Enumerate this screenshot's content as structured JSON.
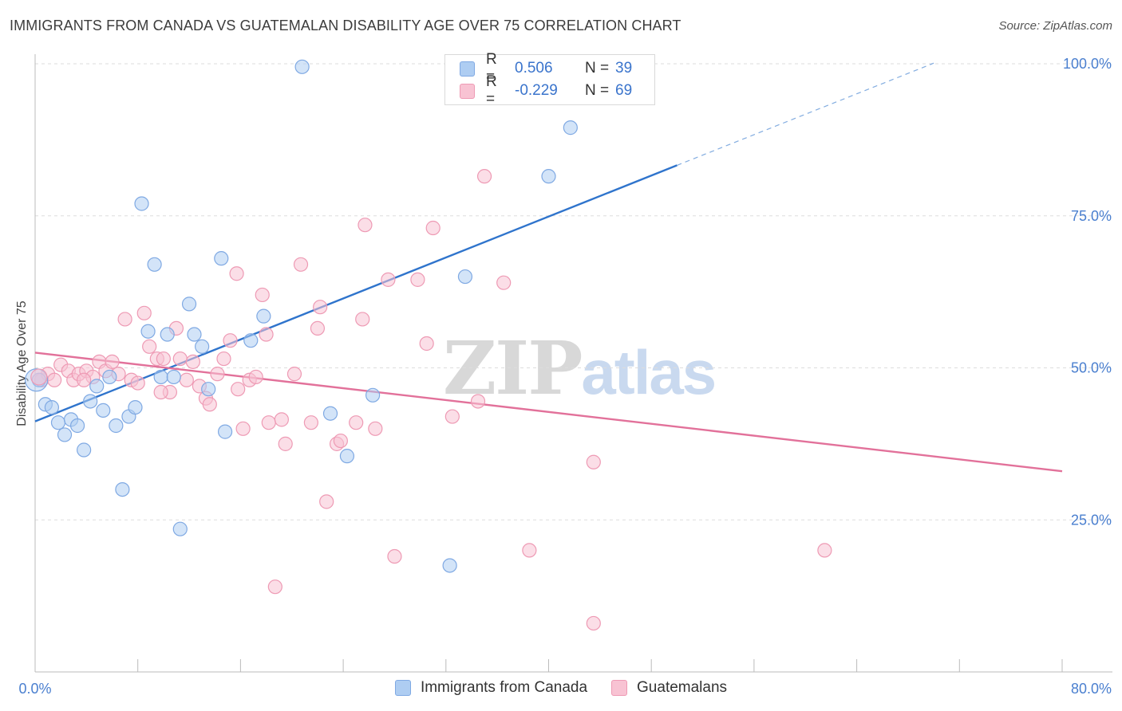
{
  "header": {
    "title": "IMMIGRANTS FROM CANADA VS GUATEMALAN DISABILITY AGE OVER 75 CORRELATION CHART",
    "source": "Source: ZipAtlas.com"
  },
  "watermark": {
    "zip": "ZIP",
    "atlas": "atlas"
  },
  "legend": {
    "rows": [
      {
        "r_label": "R =",
        "r_value": "0.506",
        "n_label": "N =",
        "n_value": "39"
      },
      {
        "r_label": "R =",
        "r_value": "-0.229",
        "n_label": "N =",
        "n_value": "69"
      }
    ]
  },
  "bottom_legend": {
    "series_a": "Immigrants from Canada",
    "series_b": "Guatemalans"
  },
  "colors": {
    "blue_fill": "#aecdf2",
    "blue_stroke": "#7fa9e3",
    "blue_line": "#2f74cc",
    "pink_fill": "#f8c3d3",
    "pink_stroke": "#ee9ab4",
    "pink_line": "#e2719a",
    "grid": "#dddddd",
    "axis_text": "#4a7fcf"
  },
  "chart_data": {
    "type": "scatter",
    "title": "IMMIGRANTS FROM CANADA VS GUATEMALAN DISABILITY AGE OVER 75 CORRELATION CHART",
    "xlabel": "",
    "ylabel": "Disability Age Over 75",
    "xlim": [
      0,
      80
    ],
    "ylim": [
      0,
      105
    ],
    "x_tick_labels": [
      "0.0%",
      "80.0%"
    ],
    "y_ticks": [
      25,
      50,
      75,
      100
    ],
    "y_tick_labels": [
      "25.0%",
      "50.0%",
      "75.0%",
      "100.0%"
    ],
    "grid": true,
    "legend_position": "top-center",
    "series": [
      {
        "name": "Immigrants from Canada",
        "color": "blue",
        "r": 0.506,
        "n": 39,
        "trend": {
          "x0": 0,
          "y0": 41.2,
          "x1": 50,
          "y1": 83.3,
          "dash_to_x": 70,
          "dash_to_y": 100.1
        },
        "points": [
          [
            0.3,
            48.0
          ],
          [
            0.8,
            44.0
          ],
          [
            1.3,
            43.5
          ],
          [
            1.8,
            41.0
          ],
          [
            2.3,
            39.0
          ],
          [
            2.8,
            41.5
          ],
          [
            3.3,
            40.5
          ],
          [
            3.8,
            36.5
          ],
          [
            4.3,
            44.5
          ],
          [
            4.8,
            47.0
          ],
          [
            5.3,
            43.0
          ],
          [
            5.8,
            48.5
          ],
          [
            6.3,
            40.5
          ],
          [
            6.8,
            30.0
          ],
          [
            7.3,
            42.0
          ],
          [
            7.8,
            43.5
          ],
          [
            8.3,
            77.0
          ],
          [
            8.8,
            56.0
          ],
          [
            9.3,
            67.0
          ],
          [
            9.8,
            48.5
          ],
          [
            10.3,
            55.5
          ],
          [
            10.8,
            48.5
          ],
          [
            11.3,
            23.5
          ],
          [
            12.0,
            60.5
          ],
          [
            12.4,
            55.5
          ],
          [
            13.0,
            53.5
          ],
          [
            13.5,
            46.5
          ],
          [
            14.5,
            68.0
          ],
          [
            14.8,
            39.5
          ],
          [
            16.8,
            54.5
          ],
          [
            17.8,
            58.5
          ],
          [
            20.8,
            99.5
          ],
          [
            24.3,
            35.5
          ],
          [
            26.3,
            45.5
          ],
          [
            32.3,
            17.5
          ],
          [
            33.5,
            65.0
          ],
          [
            40.0,
            81.5
          ],
          [
            41.7,
            89.5
          ],
          [
            23.0,
            42.5
          ]
        ]
      },
      {
        "name": "Guatemalans",
        "color": "pink",
        "r": -0.229,
        "n": 69,
        "trend": {
          "x0": 0,
          "y0": 52.5,
          "x1": 80,
          "y1": 33.0
        },
        "points": [
          [
            0.5,
            48.0
          ],
          [
            1.0,
            49.0
          ],
          [
            1.5,
            48.0
          ],
          [
            2.0,
            50.5
          ],
          [
            2.6,
            49.5
          ],
          [
            3.0,
            48.0
          ],
          [
            3.4,
            49.0
          ],
          [
            4.0,
            49.5
          ],
          [
            4.5,
            48.5
          ],
          [
            5.0,
            51.0
          ],
          [
            5.5,
            49.5
          ],
          [
            6.0,
            51.0
          ],
          [
            6.5,
            49.0
          ],
          [
            7.0,
            58.0
          ],
          [
            7.5,
            48.0
          ],
          [
            8.0,
            47.5
          ],
          [
            8.5,
            59.0
          ],
          [
            8.9,
            53.5
          ],
          [
            9.5,
            51.5
          ],
          [
            10.0,
            51.5
          ],
          [
            10.5,
            46.0
          ],
          [
            11.0,
            56.5
          ],
          [
            11.3,
            51.5
          ],
          [
            11.8,
            48.0
          ],
          [
            12.3,
            51.0
          ],
          [
            12.8,
            47.0
          ],
          [
            13.3,
            45.0
          ],
          [
            13.6,
            44.0
          ],
          [
            14.2,
            49.0
          ],
          [
            14.7,
            51.5
          ],
          [
            15.2,
            54.5
          ],
          [
            15.7,
            65.5
          ],
          [
            16.2,
            40.0
          ],
          [
            16.7,
            48.0
          ],
          [
            17.2,
            48.5
          ],
          [
            17.7,
            62.0
          ],
          [
            18.0,
            55.5
          ],
          [
            18.2,
            41.0
          ],
          [
            18.7,
            14.0
          ],
          [
            19.2,
            41.5
          ],
          [
            19.5,
            37.5
          ],
          [
            20.2,
            49.0
          ],
          [
            20.7,
            67.0
          ],
          [
            21.5,
            41.0
          ],
          [
            22.0,
            56.5
          ],
          [
            22.2,
            60.0
          ],
          [
            22.7,
            28.0
          ],
          [
            23.5,
            37.5
          ],
          [
            23.8,
            38.0
          ],
          [
            25.0,
            41.0
          ],
          [
            25.5,
            58.0
          ],
          [
            25.7,
            73.5
          ],
          [
            26.5,
            40.0
          ],
          [
            27.5,
            64.5
          ],
          [
            28.0,
            19.0
          ],
          [
            29.8,
            64.5
          ],
          [
            30.5,
            54.0
          ],
          [
            31.0,
            73.0
          ],
          [
            32.5,
            42.0
          ],
          [
            34.5,
            44.5
          ],
          [
            35.0,
            81.5
          ],
          [
            36.5,
            64.0
          ],
          [
            38.5,
            20.0
          ],
          [
            43.5,
            34.5
          ],
          [
            43.5,
            8.0
          ],
          [
            61.5,
            20.0
          ],
          [
            3.8,
            48.0
          ],
          [
            9.8,
            46.0
          ],
          [
            15.8,
            46.5
          ]
        ]
      }
    ]
  }
}
